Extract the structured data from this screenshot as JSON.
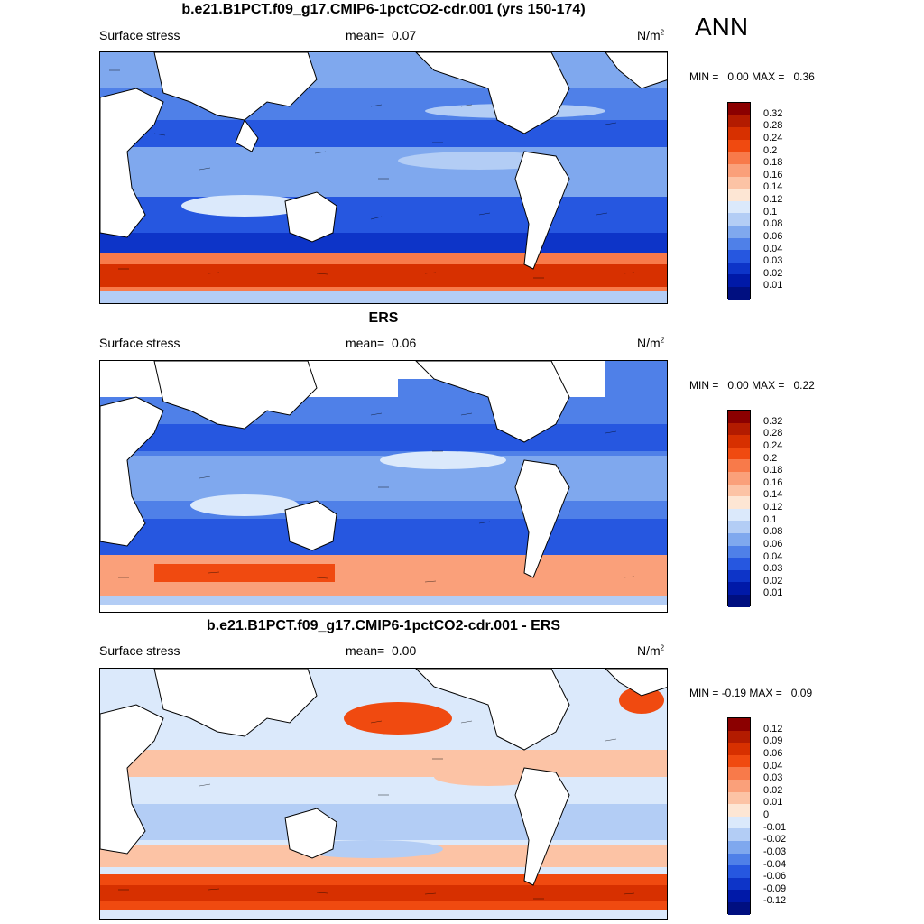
{
  "season": "ANN",
  "panels": [
    {
      "title": "b.e21.B1PCT.f09_g17.CMIP6-1pctCO2-cdr.001 (yrs 150-174)",
      "left_label": "Surface stress",
      "mean_label": "mean=",
      "mean_value": "0.07",
      "units": "N/m",
      "units_exp": "2",
      "min_label": "MIN =",
      "min_value": "0.00",
      "max_label": "MAX =",
      "max_value": "0.36",
      "levels": [
        "0.32",
        "0.28",
        "0.24",
        "0.2",
        "0.18",
        "0.16",
        "0.14",
        "0.12",
        "0.1",
        "0.08",
        "0.06",
        "0.04",
        "0.03",
        "0.02",
        "0.01"
      ],
      "colors": [
        "#8b0000",
        "#b31b00",
        "#d73000",
        "#f04a10",
        "#f87a4a",
        "#faa07a",
        "#fcc3a5",
        "#fde6d4",
        "#dbe9fb",
        "#b3cdf5",
        "#7fa8ee",
        "#4f80e8",
        "#2657e0",
        "#0d34c8",
        "#0019a8",
        "#000f80"
      ]
    },
    {
      "title": "ERS",
      "left_label": "Surface stress",
      "mean_label": "mean=",
      "mean_value": "0.06",
      "units": "N/m",
      "units_exp": "2",
      "min_label": "MIN =",
      "min_value": "0.00",
      "max_label": "MAX =",
      "max_value": "0.22",
      "levels": [
        "0.32",
        "0.28",
        "0.24",
        "0.2",
        "0.18",
        "0.16",
        "0.14",
        "0.12",
        "0.1",
        "0.08",
        "0.06",
        "0.04",
        "0.03",
        "0.02",
        "0.01"
      ],
      "colors": [
        "#8b0000",
        "#b31b00",
        "#d73000",
        "#f04a10",
        "#f87a4a",
        "#faa07a",
        "#fcc3a5",
        "#fde6d4",
        "#dbe9fb",
        "#b3cdf5",
        "#7fa8ee",
        "#4f80e8",
        "#2657e0",
        "#0d34c8",
        "#0019a8",
        "#000f80"
      ]
    },
    {
      "title": "b.e21.B1PCT.f09_g17.CMIP6-1pctCO2-cdr.001 - ERS",
      "left_label": "Surface stress",
      "mean_label": "mean=",
      "mean_value": "0.00",
      "units": "N/m",
      "units_exp": "2",
      "min_label": "MIN =",
      "min_value": "-0.19",
      "max_label": "MAX =",
      "max_value": "0.09",
      "levels": [
        "0.12",
        "0.09",
        "0.06",
        "0.04",
        "0.03",
        "0.02",
        "0.01",
        "0",
        "-0.01",
        "-0.02",
        "-0.03",
        "-0.04",
        "-0.06",
        "-0.09",
        "-0.12"
      ],
      "colors": [
        "#8b0000",
        "#b31b00",
        "#d73000",
        "#f04a10",
        "#f87a4a",
        "#faa07a",
        "#fcc3a5",
        "#fde6d4",
        "#dbe9fb",
        "#b3cdf5",
        "#7fa8ee",
        "#4f80e8",
        "#2657e0",
        "#0d34c8",
        "#0019a8",
        "#000f80"
      ]
    }
  ]
}
